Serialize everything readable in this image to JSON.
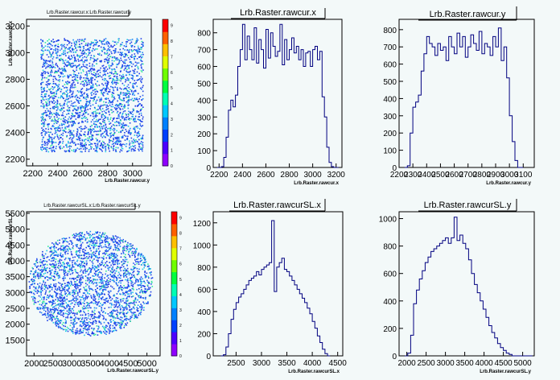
{
  "window": {
    "background": "#f3f9f9",
    "frame": "#000000",
    "line_color": "#000080"
  },
  "chart_data": [
    {
      "type": "heatmap",
      "title": "Lrb.Raster.rawcur.x:Lrb.Raster.rawcur.y",
      "xlabel": "Lrb.Raster.rawcur.y",
      "ylabel": "Lrb.Raster.rawcur.x",
      "xlim": [
        2150,
        3150
      ],
      "ylim": [
        2150,
        3250
      ],
      "xticks": [
        2200,
        2400,
        2600,
        2800,
        3000
      ],
      "yticks": [
        2200,
        2400,
        2600,
        2800,
        3000,
        3200
      ],
      "region": {
        "shape": "rect",
        "x": [
          2260,
          3080
        ],
        "y": [
          2260,
          3110
        ]
      },
      "palette_ticks": [
        0,
        1,
        2,
        3,
        4,
        5,
        6,
        7,
        8,
        9
      ],
      "palette_colors": [
        "#8e00ff",
        "#4c00ff",
        "#0040ff",
        "#0080ff",
        "#00c8ff",
        "#00ffb4",
        "#00ff40",
        "#70ff00",
        "#e0ff00",
        "#ffc000",
        "#ff6000",
        "#ff0000"
      ],
      "points_colors": [
        "#1f3fe6",
        "#2a5cf0",
        "#1e8ef5",
        "#1ec8e6",
        "#35e6a0"
      ]
    },
    {
      "type": "histogram",
      "title": "Lrb.Raster.rawcur.x",
      "xlabel": "Lrb.Raster.rawcur.x",
      "xlim": [
        2150,
        3250
      ],
      "ylim": [
        0,
        880
      ],
      "xticks": [
        2200,
        2400,
        2600,
        2800,
        3000,
        3200
      ],
      "yticks": [
        0,
        100,
        200,
        300,
        400,
        500,
        600,
        700,
        800
      ],
      "bin_start": 2180,
      "bin_width": 20,
      "values": [
        0,
        0,
        5,
        60,
        180,
        340,
        400,
        360,
        430,
        600,
        700,
        850,
        640,
        780,
        700,
        640,
        830,
        620,
        760,
        700,
        590,
        820,
        650,
        800,
        720,
        660,
        690,
        850,
        610,
        760,
        640,
        700,
        770,
        680,
        720,
        640,
        700,
        600,
        680,
        690,
        600,
        700,
        720,
        640,
        690,
        420,
        300,
        120,
        30,
        5,
        0,
        0
      ]
    },
    {
      "type": "histogram",
      "title": "Lrb.Raster.rawcur.y",
      "xlabel": "Lrb.Raster.rawcur.y",
      "xlim": [
        2200,
        3180
      ],
      "ylim": [
        0,
        860
      ],
      "xticks": [
        2200,
        2300,
        2400,
        2500,
        2600,
        2700,
        2800,
        2900,
        3000,
        3100
      ],
      "yticks": [
        0,
        100,
        200,
        300,
        400,
        500,
        600,
        700,
        800
      ],
      "bin_start": 2240,
      "bin_width": 20,
      "values": [
        0,
        10,
        200,
        350,
        380,
        420,
        560,
        660,
        760,
        720,
        700,
        650,
        720,
        680,
        700,
        620,
        760,
        700,
        660,
        780,
        700,
        760,
        640,
        700,
        770,
        720,
        680,
        790,
        660,
        720,
        700,
        650,
        760,
        700,
        810,
        620,
        700,
        520,
        300,
        150,
        40,
        0,
        0
      ]
    },
    {
      "type": "heatmap",
      "title": "Lrb.Raster.rawcurSL.x:Lrb.Raster.rawcurSL.y",
      "xlabel": "Lrb.Raster.rawcurSL.y",
      "ylabel": "Lrb.Raster.rawcurSL.x",
      "xlim": [
        1800,
        5350
      ],
      "ylim": [
        1000,
        5550
      ],
      "xticks": [
        2000,
        2500,
        3000,
        3500,
        4000,
        4500,
        5000
      ],
      "yticks": [
        1500,
        2000,
        2500,
        3000,
        3500,
        4000,
        4500,
        5000,
        5500
      ],
      "ytick_labels": [
        "1500",
        "2000",
        "2500",
        "3000",
        "3500",
        "4000",
        "4500",
        "5000",
        "5500"
      ],
      "region": {
        "shape": "circle",
        "cx": 3500,
        "cy": 3300,
        "r": 1650
      },
      "palette_ticks": [
        0,
        1,
        2,
        3,
        4,
        5,
        6,
        7,
        8,
        9
      ],
      "palette_colors": [
        "#8e00ff",
        "#4c00ff",
        "#0040ff",
        "#0080ff",
        "#00c8ff",
        "#00ffb4",
        "#00ff40",
        "#70ff00",
        "#e0ff00",
        "#ffc000",
        "#ff6000",
        "#ff0000"
      ],
      "points_colors": [
        "#1f3fe6",
        "#2a5cf0",
        "#1e8ef5",
        "#1ec8e6",
        "#35e6a0"
      ]
    },
    {
      "type": "histogram",
      "title": "Lrb.Raster.rawcurSL.x",
      "xlabel": "Lrb.Raster.rawcurSL.x",
      "xlim": [
        2050,
        4600
      ],
      "ylim": [
        0,
        1300
      ],
      "xticks": [
        2500,
        3000,
        3500,
        4000,
        4500
      ],
      "yticks": [
        0,
        200,
        400,
        600,
        800,
        1000,
        1200
      ],
      "bin_start": 2200,
      "bin_width": 50,
      "values": [
        0,
        10,
        80,
        200,
        330,
        420,
        480,
        530,
        560,
        600,
        640,
        680,
        700,
        720,
        760,
        730,
        780,
        800,
        820,
        840,
        1220,
        580,
        800,
        840,
        880,
        780,
        760,
        720,
        680,
        640,
        600,
        560,
        520,
        480,
        430,
        380,
        310,
        250,
        180,
        120,
        60,
        20,
        0
      ]
    },
    {
      "type": "histogram",
      "title": "Lrb.Raster.rawcurSL.y",
      "xlabel": "Lrb.Raster.rawcurSL.y",
      "xlim": [
        1800,
        5300
      ],
      "ylim": [
        0,
        1050
      ],
      "xticks": [
        2000,
        2500,
        3000,
        3500,
        4000,
        4500,
        5000
      ],
      "yticks": [
        0,
        200,
        400,
        600,
        800,
        1000
      ],
      "bin_start": 1950,
      "bin_width": 75,
      "values": [
        0,
        20,
        150,
        380,
        480,
        560,
        620,
        680,
        720,
        760,
        780,
        800,
        820,
        840,
        860,
        820,
        860,
        1010,
        840,
        880,
        820,
        780,
        700,
        600,
        520,
        460,
        400,
        340,
        280,
        220,
        170,
        130,
        90,
        60,
        40,
        20,
        10,
        0,
        0,
        0,
        0,
        0,
        0,
        0
      ]
    }
  ]
}
